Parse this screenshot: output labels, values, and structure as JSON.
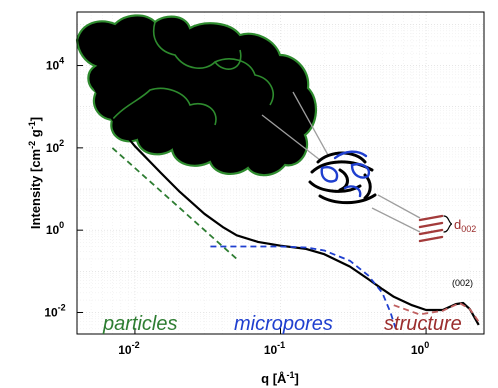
{
  "chart_data": {
    "type": "line",
    "xlabel": "q [Å",
    "xlabel_sup": "-1",
    "xlabel_end": "]",
    "ylabel_main": "Intensity [cm",
    "ylabel_sup1": "-2",
    "ylabel_mid": " g",
    "ylabel_sup2": "-1",
    "ylabel_end": "]",
    "x_scale": "log",
    "y_scale": "log",
    "xlim": [
      0.004,
      2.5
    ],
    "ylim": [
      0.003,
      200000
    ],
    "x_ticks": [
      {
        "value": 0.01,
        "base": "10",
        "exp": "-2"
      },
      {
        "value": 0.1,
        "base": "10",
        "exp": "-1"
      },
      {
        "value": 1,
        "base": "10",
        "exp": "0"
      }
    ],
    "y_ticks": [
      {
        "value": 0.01,
        "base": "10",
        "exp": "-2"
      },
      {
        "value": 1,
        "base": "10",
        "exp": "0"
      },
      {
        "value": 100,
        "base": "10",
        "exp": "2"
      },
      {
        "value": 10000,
        "base": "10",
        "exp": "4"
      }
    ],
    "grid": true,
    "series": [
      {
        "style": "solid",
        "color": "#000000",
        "points": [
          [
            0.005,
            4000
          ],
          [
            0.007,
            500
          ],
          [
            0.01,
            110
          ],
          [
            0.015,
            25
          ],
          [
            0.02,
            9
          ],
          [
            0.03,
            2.5
          ],
          [
            0.04,
            1.2
          ],
          [
            0.05,
            0.75
          ],
          [
            0.07,
            0.52
          ],
          [
            0.1,
            0.42
          ],
          [
            0.15,
            0.35
          ],
          [
            0.2,
            0.26
          ],
          [
            0.3,
            0.13
          ],
          [
            0.4,
            0.065
          ],
          [
            0.5,
            0.037
          ],
          [
            0.6,
            0.024
          ],
          [
            0.8,
            0.015
          ],
          [
            1.0,
            0.0115
          ],
          [
            1.3,
            0.0115
          ],
          [
            1.6,
            0.016
          ],
          [
            1.8,
            0.017
          ],
          [
            2.0,
            0.012
          ],
          [
            2.3,
            0.005
          ]
        ]
      },
      {
        "style": "dashed",
        "color": "#2e7d32",
        "points": [
          [
            0.007,
            100
          ],
          [
            0.05,
            0.2
          ]
        ]
      },
      {
        "style": "dashed",
        "color": "#1f3fcf",
        "points": [
          [
            0.033,
            0.4
          ],
          [
            0.1,
            0.4
          ],
          [
            0.15,
            0.38
          ],
          [
            0.2,
            0.32
          ],
          [
            0.3,
            0.18
          ],
          [
            0.4,
            0.08
          ],
          [
            0.5,
            0.03
          ],
          [
            0.57,
            0.01
          ],
          [
            0.62,
            0.004
          ]
        ]
      },
      {
        "style": "dashed",
        "color": "#c06060",
        "points": [
          [
            0.6,
            0.015
          ],
          [
            0.9,
            0.009
          ],
          [
            1.3,
            0.011
          ],
          [
            1.7,
            0.017
          ],
          [
            2.0,
            0.012
          ],
          [
            2.3,
            0.006
          ]
        ]
      }
    ],
    "annotations": {
      "particles": {
        "text": "particles",
        "color": "#2e7d32"
      },
      "micropores": {
        "text": "micropores",
        "color": "#1f3fcf"
      },
      "structure": {
        "text": "structure",
        "color": "#9b2d2d"
      },
      "peak": {
        "text": "(002)"
      },
      "d_label": {
        "main": "d",
        "sub": "002",
        "color": "#9b2d2d"
      }
    },
    "colors": {
      "particle_fill": "#000000",
      "particle_outline": "#2e8b2e",
      "pore_blue": "#1f3fcf",
      "layer_red": "#a33a3a",
      "leader_gray": "#9e9e9e"
    }
  }
}
